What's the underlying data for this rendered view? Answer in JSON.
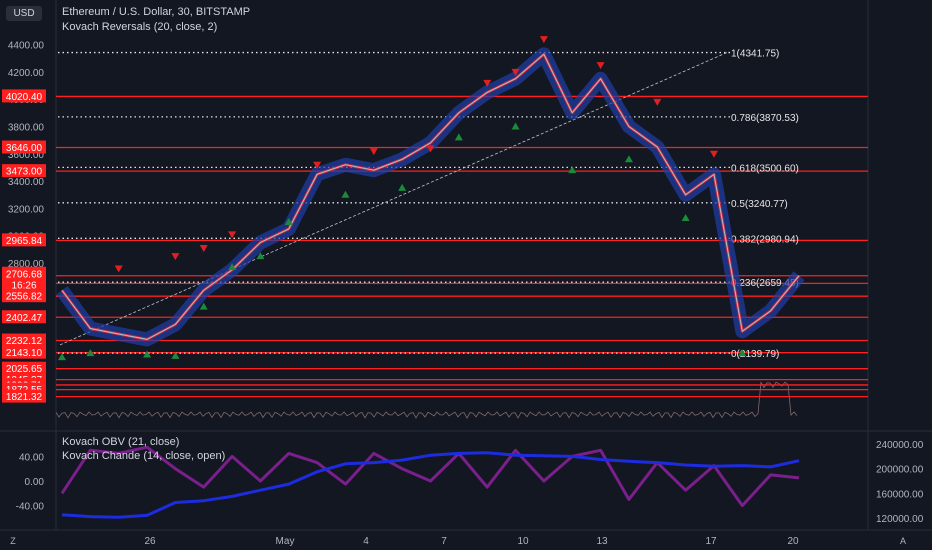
{
  "header": {
    "currency": "USD",
    "title": "Ethereum / U.S. Dollar, 30, BITSTAMP",
    "indicator": "Kovach Reversals (20, close, 2)"
  },
  "lower_pane": {
    "indicator1": "Kovach OBV (21, close)",
    "indicator2": "Kovach Chande (14, close, open)"
  },
  "corners": {
    "left": "Z",
    "right": "A"
  },
  "colors": {
    "background": "#131722",
    "candle_up": "#5d8a8a",
    "candle_down": "#b0b4c0",
    "red_line": "#ff1f1f",
    "blue_band": "#1f3fa8",
    "buy_marker": "#1b8a3a",
    "sell_marker": "#e02020",
    "obv_line": "#1d2ce0",
    "chande_line": "#7a1f8c",
    "label_bg": "#ff1f1f"
  },
  "chart_data": [
    {
      "type": "line",
      "title": "Ethereum / U.S. Dollar, 30, BITSTAMP",
      "y_axis": {
        "ticks": [
          2800,
          3000,
          3200,
          3400,
          3600,
          3800,
          4000,
          4200,
          4400
        ],
        "tick_labels": [
          "2800.00",
          "3000.00",
          "3200.00",
          "3400.00",
          "3600.00",
          "3800.00",
          "4000.00",
          "4200.00",
          "4400.00"
        ],
        "range": [
          1800,
          4550
        ]
      },
      "x_axis": {
        "tick_labels": [
          "26",
          "May",
          "4",
          "7",
          "10",
          "13",
          "17",
          "20"
        ]
      },
      "price_series": {
        "x": [
          "Apr 22",
          "Apr 23",
          "Apr 24",
          "Apr 25",
          "Apr 26",
          "Apr 28",
          "Apr 30",
          "May 2",
          "May 3",
          "May 4",
          "May 5",
          "May 6",
          "May 7",
          "May 8",
          "May 9",
          "May 10",
          "May 11",
          "May 12",
          "May 13",
          "May 14",
          "May 15",
          "May 16",
          "May 17",
          "May 18",
          "May 19",
          "May 19b",
          "May 20"
        ],
        "values": [
          2600,
          2320,
          2280,
          2240,
          2350,
          2600,
          2750,
          2950,
          3050,
          3450,
          3520,
          3480,
          3560,
          3680,
          3900,
          4050,
          4150,
          4330,
          3900,
          4150,
          3800,
          3650,
          3300,
          3450,
          2300,
          2450,
          2706.68
        ]
      },
      "horizontal_levels": [
        {
          "price": 4020.4,
          "label": "4020.40"
        },
        {
          "price": 3646.0,
          "label": "3646.00"
        },
        {
          "price": 3473.0,
          "label": "3473.00"
        },
        {
          "price": 2965.84,
          "label": "2965.84"
        },
        {
          "price": 2706.68,
          "label": "2706.68"
        },
        {
          "price": 2651.0,
          "label": "2651.00"
        },
        {
          "price": 2556.82,
          "label": "2556.82"
        },
        {
          "price": 2402.47,
          "label": "2402.47"
        },
        {
          "price": 2232.12,
          "label": "2232.12"
        },
        {
          "price": 2143.1,
          "label": "2143.10"
        },
        {
          "price": 2025.65,
          "label": "2025.65"
        },
        {
          "price": 1945.37,
          "label": "1945.37"
        },
        {
          "price": 1906.71,
          "label": "1906.71"
        },
        {
          "price": 1872.55,
          "label": "1872.55"
        },
        {
          "price": 1821.32,
          "label": "1821.32"
        }
      ],
      "last_price": {
        "value": 2706.68,
        "label": "2706.68",
        "countdown": "16:26"
      },
      "fib_levels": [
        {
          "price": 4341.75,
          "label": "1(4341.75)"
        },
        {
          "price": 3870.53,
          "label": "0.786(3870.53)"
        },
        {
          "price": 3500.6,
          "label": "0.618(3500.60)"
        },
        {
          "price": 3240.77,
          "label": "0.5(3240.77)"
        },
        {
          "price": 2980.94,
          "label": "0.382(2980.94)"
        },
        {
          "price": 2659.45,
          "label": "0.236(2659.45)"
        },
        {
          "price": 2139.79,
          "label": "0(2139.79)"
        }
      ],
      "sell_markers": [
        {
          "x": "Apr 24",
          "price": 2760
        },
        {
          "x": "Apr 26",
          "price": 2850
        },
        {
          "x": "Apr 28",
          "price": 2910
        },
        {
          "x": "Apr 30",
          "price": 3010
        },
        {
          "x": "May 4",
          "price": 3520
        },
        {
          "x": "May 6",
          "price": 3620
        },
        {
          "x": "May 8",
          "price": 3640
        },
        {
          "x": "May 10",
          "price": 4120
        },
        {
          "x": "May 11",
          "price": 4200
        },
        {
          "x": "May 12",
          "price": 4440
        },
        {
          "x": "May 14",
          "price": 4250
        },
        {
          "x": "May 16",
          "price": 3980
        },
        {
          "x": "May 18",
          "price": 3600
        }
      ],
      "buy_markers": [
        {
          "x": "Apr 22",
          "price": 2110
        },
        {
          "x": "Apr 23",
          "price": 2140
        },
        {
          "x": "Apr 25",
          "price": 2130
        },
        {
          "x": "Apr 26",
          "price": 2120
        },
        {
          "x": "Apr 28",
          "price": 2480
        },
        {
          "x": "Apr 30",
          "price": 2770
        },
        {
          "x": "May 2",
          "price": 2850
        },
        {
          "x": "May 3",
          "price": 3100
        },
        {
          "x": "May 5",
          "price": 3300
        },
        {
          "x": "May 7",
          "price": 3350
        },
        {
          "x": "May 9",
          "price": 3720
        },
        {
          "x": "May 11",
          "price": 3800
        },
        {
          "x": "May 13",
          "price": 3480
        },
        {
          "x": "May 15",
          "price": 3560
        },
        {
          "x": "May 17",
          "price": 3130
        },
        {
          "x": "May 19",
          "price": 2140
        }
      ]
    },
    {
      "type": "line",
      "series": [
        {
          "name": "Kovach OBV (21, close)",
          "axis": "right",
          "values": [
            125000,
            122000,
            121000,
            124000,
            145000,
            148000,
            155000,
            165000,
            175000,
            195000,
            208000,
            210000,
            214000,
            222000,
            225000,
            226000,
            222000,
            221000,
            220000,
            215000,
            212000,
            210000,
            206000,
            204000,
            205000,
            203000,
            213000
          ]
        },
        {
          "name": "Kovach Chande (14, close, open)",
          "axis": "left",
          "values": [
            -20,
            50,
            45,
            55,
            20,
            -10,
            40,
            0,
            45,
            30,
            -5,
            45,
            20,
            0,
            45,
            -10,
            50,
            0,
            40,
            50,
            -30,
            30,
            -15,
            25,
            -40,
            10,
            5
          ]
        }
      ],
      "left_axis": {
        "ticks": [
          -40,
          0,
          40
        ],
        "tick_labels": [
          "-40.00",
          "0.00",
          "40.00"
        ],
        "range": [
          -70,
          70
        ]
      },
      "right_axis": {
        "ticks": [
          120000,
          160000,
          200000,
          240000
        ],
        "tick_labels": [
          "120000.00",
          "160000.00",
          "200000.00",
          "240000.00"
        ],
        "range": [
          110000,
          250000
        ]
      }
    }
  ]
}
